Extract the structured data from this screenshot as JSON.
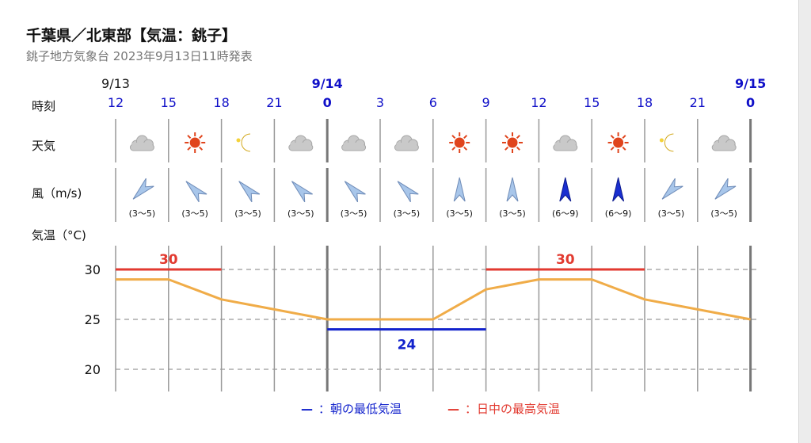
{
  "header": {
    "title": "千葉県／北東部【気温：銚子】",
    "subtitle": "銚子地方気象台 2023年9月13日11時発表"
  },
  "row_labels": {
    "time": "時刻",
    "weather": "天気",
    "wind": "風（m/s)",
    "temperature": "気温（°C)"
  },
  "dates": [
    {
      "label": "9/13",
      "color": "#1a1a1a"
    },
    {
      "label": "9/14",
      "color": "#1010c8"
    },
    {
      "label": "9/15",
      "color": "#1010c8"
    }
  ],
  "times": [
    {
      "label": "12",
      "bold": false
    },
    {
      "label": "15",
      "bold": false
    },
    {
      "label": "18",
      "bold": false
    },
    {
      "label": "21",
      "bold": false
    },
    {
      "label": "0",
      "bold": true
    },
    {
      "label": "3",
      "bold": false
    },
    {
      "label": "6",
      "bold": false
    },
    {
      "label": "9",
      "bold": false
    },
    {
      "label": "12",
      "bold": false
    },
    {
      "label": "15",
      "bold": false
    },
    {
      "label": "18",
      "bold": false
    },
    {
      "label": "21",
      "bold": false
    },
    {
      "label": "0",
      "bold": true
    }
  ],
  "weather_icons": [
    "cloud-icon",
    "sun-icon",
    "moon-icon",
    "cloud-icon",
    "cloud-icon",
    "cloud-icon",
    "sun-icon",
    "sun-icon",
    "cloud-icon",
    "sun-icon",
    "moon-icon",
    "cloud-icon"
  ],
  "wind": [
    {
      "direction_deg": 45,
      "speed": "(3〜5)",
      "strong": false
    },
    {
      "direction_deg": 135,
      "speed": "(3〜5)",
      "strong": false
    },
    {
      "direction_deg": 135,
      "speed": "(3〜5)",
      "strong": false
    },
    {
      "direction_deg": 135,
      "speed": "(3〜5)",
      "strong": false
    },
    {
      "direction_deg": 135,
      "speed": "(3〜5)",
      "strong": false
    },
    {
      "direction_deg": 135,
      "speed": "(3〜5)",
      "strong": false
    },
    {
      "direction_deg": 180,
      "speed": "(3〜5)",
      "strong": false
    },
    {
      "direction_deg": 180,
      "speed": "(3〜5)",
      "strong": false
    },
    {
      "direction_deg": 180,
      "speed": "(6〜9)",
      "strong": true
    },
    {
      "direction_deg": 180,
      "speed": "(6〜9)",
      "strong": true
    },
    {
      "direction_deg": 45,
      "speed": "(3〜5)",
      "strong": false
    },
    {
      "direction_deg": 45,
      "speed": "(3〜5)",
      "strong": false
    }
  ],
  "chart_data": {
    "type": "line",
    "x_hours": [
      0,
      3,
      6,
      9,
      12,
      15,
      18,
      21,
      24,
      27,
      30,
      33,
      36
    ],
    "temperature": [
      29,
      29,
      27,
      26,
      25,
      25,
      25,
      28,
      29,
      29,
      27,
      26,
      25
    ],
    "y_ticks": [
      30,
      25,
      20
    ],
    "ylim": [
      17,
      33
    ],
    "grid": true,
    "max_temps": [
      {
        "label": "30",
        "value": 30,
        "x_start": 0,
        "x_end": 6
      },
      {
        "label": "30",
        "value": 30,
        "x_start": 21,
        "x_end": 30
      }
    ],
    "min_temps": [
      {
        "label": "24",
        "value": 24,
        "x_start": 12,
        "x_end": 21
      }
    ],
    "colors": {
      "temperature": "#f0ac48",
      "max": "#e23a30",
      "min": "#1222cc",
      "grid": "#999999"
    }
  },
  "legend": [
    {
      "marker": "—",
      "text": "：朝の最低気温",
      "color": "#1222cc"
    },
    {
      "marker": "—",
      "text": "：日中の最高気温",
      "color": "#e23a30"
    }
  ]
}
